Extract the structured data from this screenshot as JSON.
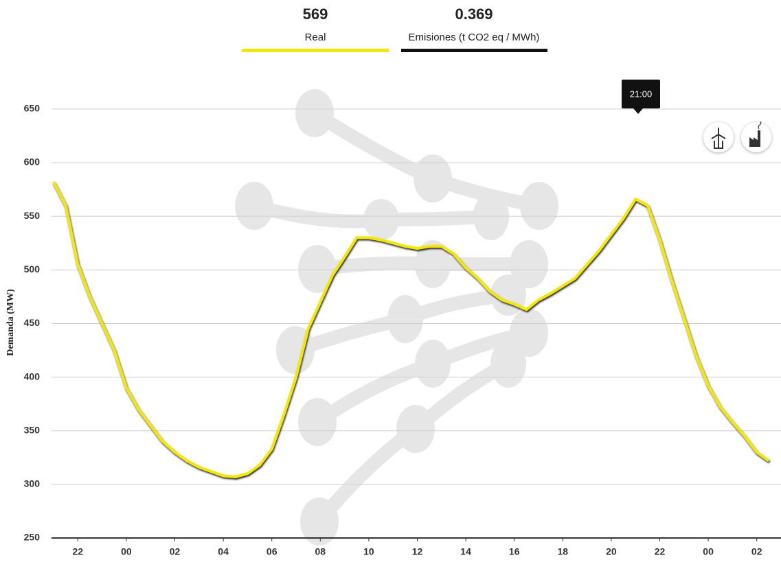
{
  "header": {
    "real_value": 569,
    "real_label": "Real",
    "emissions_value": 0.369,
    "emissions_label": "Emisiones (t CO2 eq / MWh)"
  },
  "chart_data": {
    "type": "line",
    "y_label": "Demanda (MW)",
    "tooltip": "21:00",
    "x": [
      21,
      21.5,
      22,
      22.5,
      23,
      23.5,
      24,
      24.5,
      25,
      25.5,
      26,
      26.5,
      27,
      27.5,
      28,
      28.5,
      29,
      29.5,
      30,
      30.5,
      31,
      31.5,
      32,
      32.5,
      33,
      33.5,
      34,
      34.5,
      35,
      35.5,
      36,
      36.5,
      37,
      37.5,
      38,
      38.5,
      39,
      39.5,
      40,
      40.5,
      41,
      41.5,
      42,
      42.5,
      43,
      43.5,
      44,
      44.5,
      45,
      45.5,
      46,
      46.5,
      47,
      47.5,
      48,
      48.5,
      49,
      49.5,
      50,
      50.5
    ],
    "series": [
      {
        "name": "Real",
        "color": "#f5e800",
        "values": [
          582,
          560,
          505,
          475,
          450,
          425,
          390,
          370,
          355,
          340,
          330,
          322,
          316,
          312,
          308,
          307,
          310,
          318,
          333,
          365,
          400,
          445,
          470,
          495,
          512,
          530,
          530,
          528,
          525,
          522,
          520,
          522,
          522,
          515,
          502,
          492,
          480,
          472,
          468,
          463,
          472,
          478,
          485,
          492,
          505,
          518,
          533,
          548,
          566,
          560,
          528,
          490,
          455,
          420,
          392,
          372,
          358,
          345,
          330,
          322
        ]
      }
    ],
    "xlim": [
      21,
      51
    ],
    "xticks": [
      22,
      {
        "value": 24,
        "label": "00"
      },
      {
        "value": 26,
        "label": "02"
      },
      {
        "value": 28,
        "label": "04"
      },
      {
        "value": 30,
        "label": "06"
      },
      {
        "value": 32,
        "label": "08"
      },
      {
        "value": 34,
        "label": "10"
      },
      {
        "value": 36,
        "label": "12"
      },
      {
        "value": 38,
        "label": "14"
      },
      {
        "value": 40,
        "label": "16"
      },
      {
        "value": 42,
        "label": "18"
      },
      {
        "value": 44,
        "label": "20"
      },
      {
        "value": 46,
        "label": "22"
      },
      {
        "value": 48,
        "label": "00"
      },
      {
        "value": 50,
        "label": "02"
      }
    ],
    "ylim": [
      250,
      680
    ],
    "yticks": [
      250,
      300,
      350,
      400,
      450,
      500,
      550,
      600,
      650
    ],
    "grid": true
  }
}
